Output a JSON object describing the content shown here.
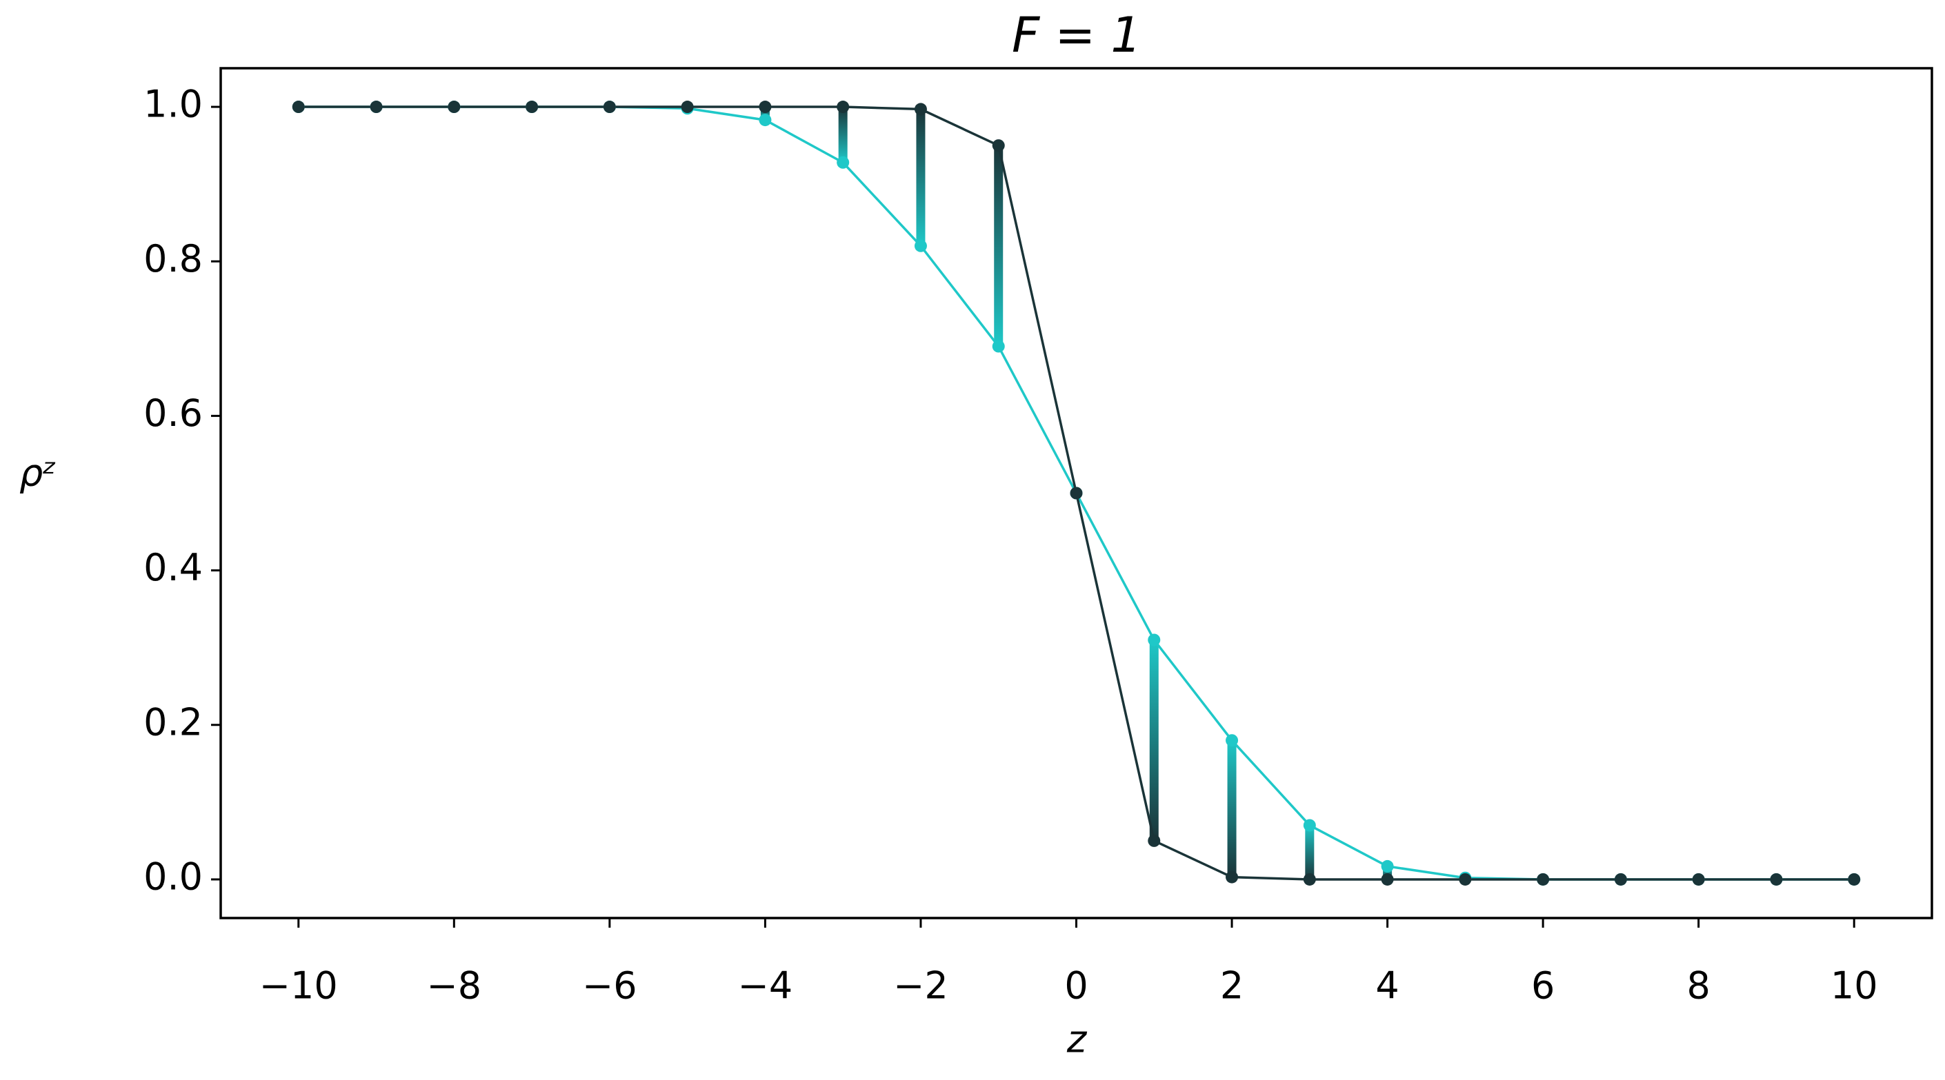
{
  "chart_data": {
    "type": "line",
    "title": "F = 1",
    "xlabel": "z",
    "ylabel": "ρᶻ",
    "x": [
      -10,
      -9,
      -8,
      -7,
      -6,
      -5,
      -4,
      -3,
      -2,
      -1,
      0,
      1,
      2,
      3,
      4,
      5,
      6,
      7,
      8,
      9,
      10
    ],
    "series": [
      {
        "color": "#1fc8c8",
        "values": [
          1,
          1,
          1,
          1,
          1,
          0.998,
          0.983,
          0.928,
          0.82,
          0.69,
          0.5,
          0.31,
          0.18,
          0.07,
          0.017,
          0.002,
          0,
          0,
          0,
          0,
          0
        ]
      },
      {
        "color": "#1a3438",
        "values": [
          1,
          1,
          1,
          1,
          1,
          1,
          1,
          1,
          0.997,
          0.95,
          0.5,
          0.05,
          0.003,
          0,
          0,
          0,
          0,
          0,
          0,
          0,
          0
        ]
      }
    ],
    "xlim": [
      -11,
      11
    ],
    "xticks": [
      {
        "value": -10,
        "label": "−10"
      },
      {
        "value": -8,
        "label": "−8"
      },
      {
        "value": -6,
        "label": "−6"
      },
      {
        "value": -4,
        "label": "−4"
      },
      {
        "value": -2,
        "label": "−2"
      },
      0,
      2,
      4,
      6,
      8,
      10
    ],
    "ylim": [
      -0.05,
      1.05
    ],
    "yticks": [
      {
        "value": 0,
        "label": "0.0"
      },
      0.2,
      0.4,
      0.6,
      0.8,
      {
        "value": 1,
        "label": "1.0"
      }
    ],
    "grid": false
  }
}
